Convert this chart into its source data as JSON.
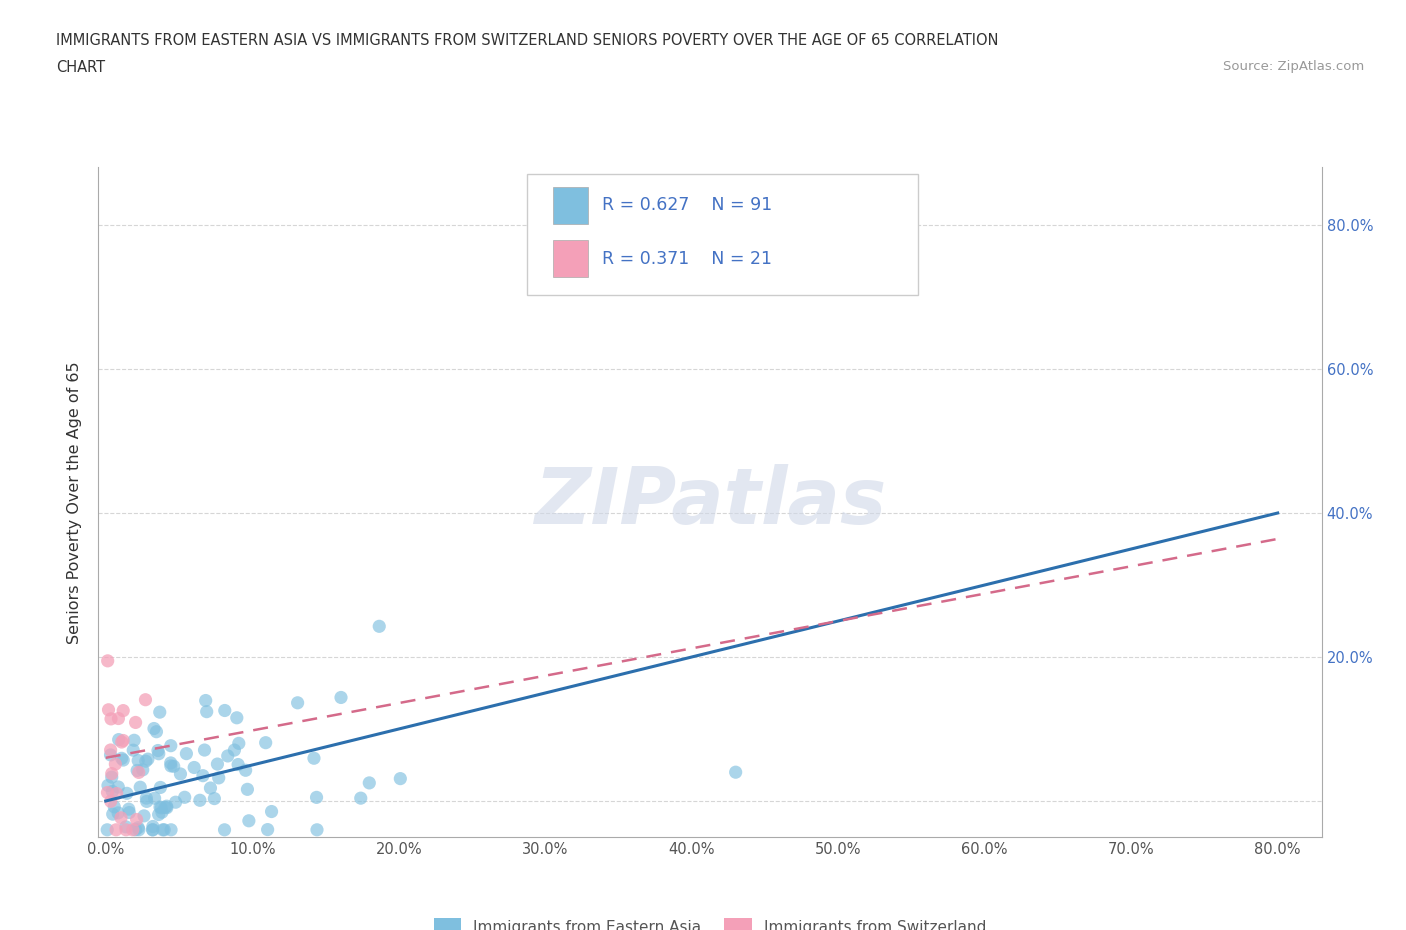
{
  "title_line1": "IMMIGRANTS FROM EASTERN ASIA VS IMMIGRANTS FROM SWITZERLAND SENIORS POVERTY OVER THE AGE OF 65 CORRELATION",
  "title_line2": "CHART",
  "source": "Source: ZipAtlas.com",
  "ylabel": "Seniors Poverty Over the Age of 65",
  "xlim_min": -0.005,
  "xlim_max": 0.83,
  "ylim_min": -0.05,
  "ylim_max": 0.88,
  "xticks": [
    0.0,
    0.1,
    0.2,
    0.3,
    0.4,
    0.5,
    0.6,
    0.7,
    0.8
  ],
  "yticks": [
    0.0,
    0.2,
    0.4,
    0.6,
    0.8
  ],
  "ytick_labels_right": [
    "",
    "20.0%",
    "40.0%",
    "60.0%",
    "80.0%"
  ],
  "blue_color": "#7fbfdf",
  "pink_color": "#f4a0b8",
  "blue_line_color": "#2c6fad",
  "pink_line_color": "#d46a8a",
  "legend_label1": "Immigrants from Eastern Asia",
  "legend_label2": "Immigrants from Switzerland",
  "R1": 0.627,
  "N1": 91,
  "R2": 0.371,
  "N2": 21,
  "blue_intercept": 0.0,
  "blue_slope": 0.5,
  "pink_intercept": 0.06,
  "pink_slope": 0.38,
  "watermark": "ZIPatlas",
  "background_color": "#ffffff",
  "grid_color": "#cccccc",
  "title_color": "#333333",
  "source_color": "#999999",
  "axis_label_color": "#333333",
  "tick_color": "#4472c4"
}
